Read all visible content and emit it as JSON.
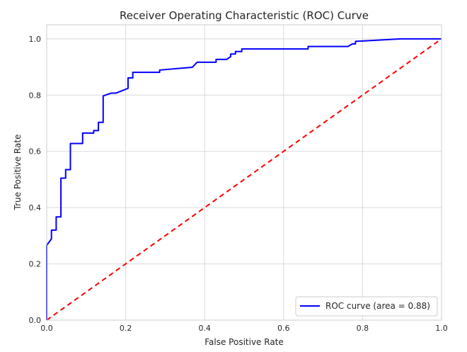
{
  "chart_data": {
    "type": "line",
    "title": "Receiver Operating Characteristic (ROC) Curve",
    "xlabel": "False Positive Rate",
    "ylabel": "True Positive Rate",
    "xlim": [
      0.0,
      1.0
    ],
    "ylim": [
      0.0,
      1.05
    ],
    "xticks": [
      "0.0",
      "0.2",
      "0.4",
      "0.6",
      "0.8",
      "1.0"
    ],
    "yticks": [
      "0.0",
      "0.2",
      "0.4",
      "0.6",
      "0.8",
      "1.0"
    ],
    "grid": true,
    "legend_placement": "lower-right",
    "series": [
      {
        "name": "ROC curve (area = 0.88)",
        "color": "#0000ff",
        "style": "solid",
        "x": [
          0.0,
          0.0,
          0.0,
          0.012,
          0.012,
          0.024,
          0.024,
          0.036,
          0.036,
          0.048,
          0.048,
          0.06,
          0.06,
          0.071,
          0.071,
          0.091,
          0.091,
          0.119,
          0.119,
          0.131,
          0.131,
          0.143,
          0.143,
          0.163,
          0.175,
          0.206,
          0.206,
          0.218,
          0.218,
          0.286,
          0.286,
          0.369,
          0.381,
          0.429,
          0.429,
          0.456,
          0.466,
          0.466,
          0.478,
          0.478,
          0.494,
          0.494,
          0.662,
          0.662,
          0.763,
          0.774,
          0.782,
          0.782,
          0.897,
          1.0
        ],
        "y": [
          0.0,
          0.04,
          0.266,
          0.289,
          0.32,
          0.32,
          0.367,
          0.367,
          0.505,
          0.505,
          0.535,
          0.535,
          0.628,
          0.628,
          0.628,
          0.628,
          0.665,
          0.665,
          0.674,
          0.674,
          0.703,
          0.703,
          0.797,
          0.807,
          0.807,
          0.824,
          0.861,
          0.861,
          0.881,
          0.881,
          0.889,
          0.899,
          0.917,
          0.917,
          0.927,
          0.927,
          0.937,
          0.946,
          0.946,
          0.955,
          0.955,
          0.964,
          0.964,
          0.973,
          0.973,
          0.982,
          0.982,
          0.991,
          1.0,
          1.0
        ]
      },
      {
        "name": "",
        "color": "#ff0000",
        "style": "dashed",
        "x": [
          0.0,
          1.0
        ],
        "y": [
          0.0,
          1.0
        ]
      }
    ]
  }
}
